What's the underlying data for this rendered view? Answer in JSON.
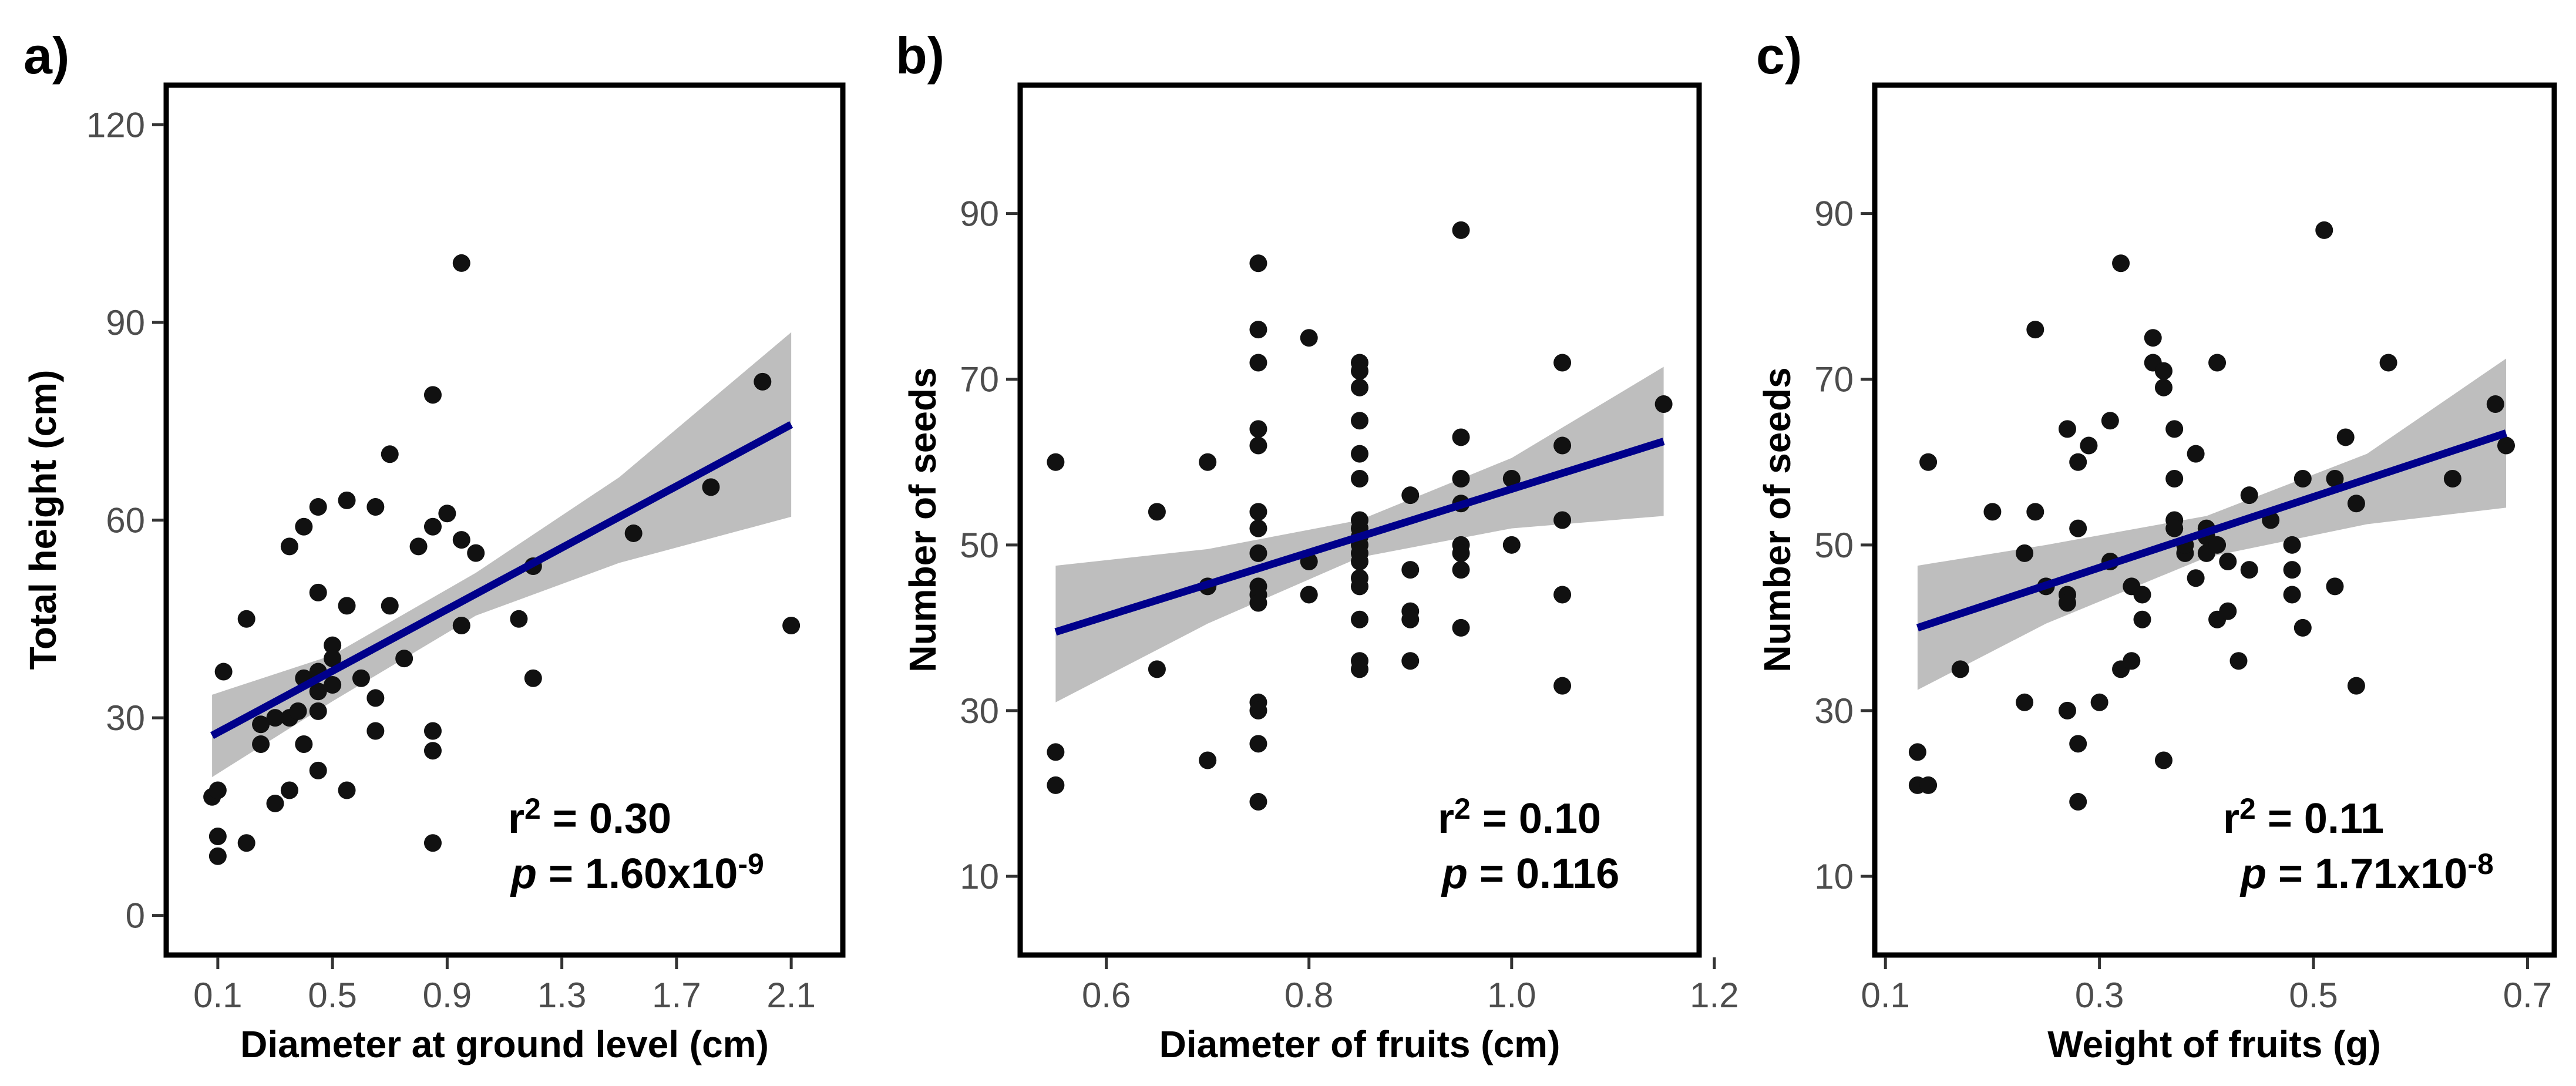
{
  "chart_data": [
    {
      "type": "scatter",
      "panel_label": "a)",
      "xlabel": "Diameter at ground level (cm)",
      "ylabel": "Total height (cm)",
      "xlim": [
        -0.08,
        2.28
      ],
      "ylim": [
        -6,
        126
      ],
      "xticks": [
        0.1,
        0.5,
        0.9,
        1.3,
        1.7,
        2.1
      ],
      "xtick_labels": [
        "0.1",
        "0.5",
        "0.9",
        "1.3",
        "1.7",
        "2.1"
      ],
      "yticks": [
        0,
        30,
        60,
        90,
        120
      ],
      "ytick_labels": [
        "0",
        "30",
        "60",
        "90",
        "120"
      ],
      "stats": {
        "r2_prefix": "r",
        "r2_exp": "2",
        "r2_value": " = 0.30",
        "p_prefix": "p",
        "p_value": "  = 1.60x10",
        "p_exp": "-9"
      },
      "fit": {
        "x": [
          0.08,
          2.1
        ],
        "y": [
          27.3,
          74.5
        ]
      },
      "ci": {
        "x": [
          0.08,
          0.5,
          1.0,
          1.5,
          2.1
        ],
        "upper": [
          33.5,
          39.5,
          52.0,
          66.5,
          88.5
        ],
        "lower": [
          21.0,
          32.5,
          45.5,
          53.5,
          60.5
        ]
      },
      "points": [
        {
          "x": 0.08,
          "y": 18
        },
        {
          "x": 0.1,
          "y": 19
        },
        {
          "x": 0.1,
          "y": 9
        },
        {
          "x": 0.1,
          "y": 12
        },
        {
          "x": 0.12,
          "y": 37
        },
        {
          "x": 0.2,
          "y": 45
        },
        {
          "x": 0.2,
          "y": 11
        },
        {
          "x": 0.25,
          "y": 29
        },
        {
          "x": 0.25,
          "y": 26
        },
        {
          "x": 0.3,
          "y": 17
        },
        {
          "x": 0.3,
          "y": 30
        },
        {
          "x": 0.35,
          "y": 30
        },
        {
          "x": 0.35,
          "y": 19
        },
        {
          "x": 0.35,
          "y": 56
        },
        {
          "x": 0.38,
          "y": 31
        },
        {
          "x": 0.4,
          "y": 59
        },
        {
          "x": 0.4,
          "y": 36
        },
        {
          "x": 0.4,
          "y": 26
        },
        {
          "x": 0.45,
          "y": 62
        },
        {
          "x": 0.45,
          "y": 49
        },
        {
          "x": 0.45,
          "y": 37
        },
        {
          "x": 0.45,
          "y": 34
        },
        {
          "x": 0.45,
          "y": 31
        },
        {
          "x": 0.45,
          "y": 22
        },
        {
          "x": 0.5,
          "y": 41
        },
        {
          "x": 0.5,
          "y": 39
        },
        {
          "x": 0.5,
          "y": 35
        },
        {
          "x": 0.55,
          "y": 63
        },
        {
          "x": 0.55,
          "y": 47
        },
        {
          "x": 0.55,
          "y": 19
        },
        {
          "x": 0.6,
          "y": 36
        },
        {
          "x": 0.65,
          "y": 62
        },
        {
          "x": 0.65,
          "y": 33
        },
        {
          "x": 0.65,
          "y": 28
        },
        {
          "x": 0.7,
          "y": 70
        },
        {
          "x": 0.7,
          "y": 47
        },
        {
          "x": 0.75,
          "y": 39
        },
        {
          "x": 0.8,
          "y": 56
        },
        {
          "x": 0.85,
          "y": 79
        },
        {
          "x": 0.85,
          "y": 59
        },
        {
          "x": 0.85,
          "y": 28
        },
        {
          "x": 0.85,
          "y": 25
        },
        {
          "x": 0.85,
          "y": 11
        },
        {
          "x": 0.9,
          "y": 61
        },
        {
          "x": 0.95,
          "y": 99
        },
        {
          "x": 0.95,
          "y": 57
        },
        {
          "x": 0.95,
          "y": 44
        },
        {
          "x": 1.0,
          "y": 55
        },
        {
          "x": 1.15,
          "y": 45
        },
        {
          "x": 1.2,
          "y": 53
        },
        {
          "x": 1.2,
          "y": 36
        },
        {
          "x": 1.55,
          "y": 58
        },
        {
          "x": 1.82,
          "y": 65
        },
        {
          "x": 2.0,
          "y": 81
        },
        {
          "x": 2.1,
          "y": 44
        }
      ]
    },
    {
      "type": "scatter",
      "panel_label": "b)",
      "xlabel": "Diameter of fruits (cm)",
      "ylabel": "Number of seeds",
      "xlim": [
        0.515,
        1.185
      ],
      "ylim": [
        0.5,
        105.5
      ],
      "xticks": [
        0.6,
        0.8,
        1.0,
        1.2
      ],
      "xtick_labels": [
        "0.6",
        "0.8",
        "1.0",
        "1.2"
      ],
      "yticks": [
        10,
        30,
        50,
        70,
        90
      ],
      "ytick_labels": [
        "10",
        "30",
        "50",
        "70",
        "90"
      ],
      "stats": {
        "r2_prefix": "r",
        "r2_exp": "2",
        "r2_value": " = 0.10",
        "p_prefix": "p",
        "p_value": "  = 0.116",
        "p_exp": ""
      },
      "fit": {
        "x": [
          0.55,
          1.15
        ],
        "y": [
          39.5,
          62.5
        ]
      },
      "ci": {
        "x": [
          0.55,
          0.7,
          0.85,
          1.0,
          1.15
        ],
        "upper": [
          47.5,
          49.5,
          53.0,
          60.5,
          71.5
        ],
        "lower": [
          31.0,
          40.5,
          48.5,
          52.0,
          53.5
        ]
      },
      "points": [
        {
          "x": 0.55,
          "y": 60
        },
        {
          "x": 0.55,
          "y": 25
        },
        {
          "x": 0.55,
          "y": 21
        },
        {
          "x": 0.65,
          "y": 54
        },
        {
          "x": 0.65,
          "y": 35
        },
        {
          "x": 0.7,
          "y": 60
        },
        {
          "x": 0.7,
          "y": 45
        },
        {
          "x": 0.7,
          "y": 24
        },
        {
          "x": 0.75,
          "y": 84
        },
        {
          "x": 0.75,
          "y": 76
        },
        {
          "x": 0.75,
          "y": 72
        },
        {
          "x": 0.75,
          "y": 64
        },
        {
          "x": 0.75,
          "y": 62
        },
        {
          "x": 0.75,
          "y": 54
        },
        {
          "x": 0.75,
          "y": 52
        },
        {
          "x": 0.75,
          "y": 49
        },
        {
          "x": 0.75,
          "y": 45
        },
        {
          "x": 0.75,
          "y": 44
        },
        {
          "x": 0.75,
          "y": 43
        },
        {
          "x": 0.75,
          "y": 31
        },
        {
          "x": 0.75,
          "y": 30
        },
        {
          "x": 0.75,
          "y": 26
        },
        {
          "x": 0.75,
          "y": 19
        },
        {
          "x": 0.8,
          "y": 75
        },
        {
          "x": 0.8,
          "y": 48
        },
        {
          "x": 0.8,
          "y": 44
        },
        {
          "x": 0.85,
          "y": 72
        },
        {
          "x": 0.85,
          "y": 71
        },
        {
          "x": 0.85,
          "y": 69
        },
        {
          "x": 0.85,
          "y": 65
        },
        {
          "x": 0.85,
          "y": 61
        },
        {
          "x": 0.85,
          "y": 58
        },
        {
          "x": 0.85,
          "y": 53
        },
        {
          "x": 0.85,
          "y": 52
        },
        {
          "x": 0.85,
          "y": 51
        },
        {
          "x": 0.85,
          "y": 50
        },
        {
          "x": 0.85,
          "y": 49
        },
        {
          "x": 0.85,
          "y": 48
        },
        {
          "x": 0.85,
          "y": 46
        },
        {
          "x": 0.85,
          "y": 45
        },
        {
          "x": 0.85,
          "y": 41
        },
        {
          "x": 0.85,
          "y": 36
        },
        {
          "x": 0.85,
          "y": 35
        },
        {
          "x": 0.9,
          "y": 56
        },
        {
          "x": 0.9,
          "y": 47
        },
        {
          "x": 0.9,
          "y": 42
        },
        {
          "x": 0.9,
          "y": 41
        },
        {
          "x": 0.9,
          "y": 36
        },
        {
          "x": 0.95,
          "y": 88
        },
        {
          "x": 0.95,
          "y": 63
        },
        {
          "x": 0.95,
          "y": 58
        },
        {
          "x": 0.95,
          "y": 55
        },
        {
          "x": 0.95,
          "y": 50
        },
        {
          "x": 0.95,
          "y": 49
        },
        {
          "x": 0.95,
          "y": 47
        },
        {
          "x": 0.95,
          "y": 40
        },
        {
          "x": 1.0,
          "y": 58
        },
        {
          "x": 1.0,
          "y": 50
        },
        {
          "x": 1.05,
          "y": 72
        },
        {
          "x": 1.05,
          "y": 62
        },
        {
          "x": 1.05,
          "y": 53
        },
        {
          "x": 1.05,
          "y": 44
        },
        {
          "x": 1.05,
          "y": 33
        },
        {
          "x": 1.15,
          "y": 67
        }
      ]
    },
    {
      "type": "scatter",
      "panel_label": "c)",
      "xlabel": "Weight of fruits (g)",
      "ylabel": "Number of seeds",
      "xlim": [
        0.09,
        0.725
      ],
      "ylim": [
        0.5,
        105.5
      ],
      "xticks": [
        0.1,
        0.3,
        0.5,
        0.7
      ],
      "xtick_labels": [
        "0.1",
        "0.3",
        "0.5",
        "0.7"
      ],
      "yticks": [
        10,
        30,
        50,
        70,
        90
      ],
      "ytick_labels": [
        "10",
        "30",
        "50",
        "70",
        "90"
      ],
      "stats": {
        "r2_prefix": "r",
        "r2_exp": "2",
        "r2_value": " = 0.11",
        "p_prefix": "p",
        "p_value": " = 1.71x10",
        "p_exp": "-8"
      },
      "fit": {
        "x": [
          0.13,
          0.68
        ],
        "y": [
          40.0,
          63.5
        ]
      },
      "ci": {
        "x": [
          0.13,
          0.25,
          0.4,
          0.55,
          0.68
        ],
        "upper": [
          47.5,
          50.0,
          53.5,
          61.0,
          72.5
        ],
        "lower": [
          32.5,
          40.5,
          48.5,
          52.5,
          54.5
        ]
      },
      "points": [
        {
          "x": 0.13,
          "y": 25
        },
        {
          "x": 0.13,
          "y": 21
        },
        {
          "x": 0.14,
          "y": 60
        },
        {
          "x": 0.14,
          "y": 21
        },
        {
          "x": 0.17,
          "y": 35
        },
        {
          "x": 0.2,
          "y": 54
        },
        {
          "x": 0.23,
          "y": 49
        },
        {
          "x": 0.23,
          "y": 31
        },
        {
          "x": 0.24,
          "y": 76
        },
        {
          "x": 0.24,
          "y": 54
        },
        {
          "x": 0.25,
          "y": 45
        },
        {
          "x": 0.27,
          "y": 64
        },
        {
          "x": 0.27,
          "y": 30
        },
        {
          "x": 0.27,
          "y": 44
        },
        {
          "x": 0.27,
          "y": 43
        },
        {
          "x": 0.28,
          "y": 60
        },
        {
          "x": 0.28,
          "y": 52
        },
        {
          "x": 0.28,
          "y": 19
        },
        {
          "x": 0.28,
          "y": 26
        },
        {
          "x": 0.29,
          "y": 62
        },
        {
          "x": 0.3,
          "y": 31
        },
        {
          "x": 0.31,
          "y": 65
        },
        {
          "x": 0.31,
          "y": 48
        },
        {
          "x": 0.32,
          "y": 84
        },
        {
          "x": 0.32,
          "y": 35
        },
        {
          "x": 0.33,
          "y": 36
        },
        {
          "x": 0.33,
          "y": 45
        },
        {
          "x": 0.34,
          "y": 44
        },
        {
          "x": 0.34,
          "y": 41
        },
        {
          "x": 0.35,
          "y": 75
        },
        {
          "x": 0.35,
          "y": 72
        },
        {
          "x": 0.36,
          "y": 69
        },
        {
          "x": 0.36,
          "y": 71
        },
        {
          "x": 0.36,
          "y": 24
        },
        {
          "x": 0.37,
          "y": 64
        },
        {
          "x": 0.37,
          "y": 58
        },
        {
          "x": 0.37,
          "y": 53
        },
        {
          "x": 0.37,
          "y": 52
        },
        {
          "x": 0.38,
          "y": 49
        },
        {
          "x": 0.38,
          "y": 50
        },
        {
          "x": 0.39,
          "y": 61
        },
        {
          "x": 0.39,
          "y": 46
        },
        {
          "x": 0.4,
          "y": 52
        },
        {
          "x": 0.4,
          "y": 51
        },
        {
          "x": 0.4,
          "y": 49
        },
        {
          "x": 0.41,
          "y": 72
        },
        {
          "x": 0.41,
          "y": 50
        },
        {
          "x": 0.41,
          "y": 41
        },
        {
          "x": 0.42,
          "y": 48
        },
        {
          "x": 0.42,
          "y": 42
        },
        {
          "x": 0.43,
          "y": 36
        },
        {
          "x": 0.44,
          "y": 56
        },
        {
          "x": 0.44,
          "y": 47
        },
        {
          "x": 0.46,
          "y": 53
        },
        {
          "x": 0.48,
          "y": 50
        },
        {
          "x": 0.48,
          "y": 44
        },
        {
          "x": 0.48,
          "y": 47
        },
        {
          "x": 0.49,
          "y": 40
        },
        {
          "x": 0.49,
          "y": 58
        },
        {
          "x": 0.51,
          "y": 88
        },
        {
          "x": 0.52,
          "y": 58
        },
        {
          "x": 0.52,
          "y": 45
        },
        {
          "x": 0.53,
          "y": 63
        },
        {
          "x": 0.54,
          "y": 55
        },
        {
          "x": 0.54,
          "y": 33
        },
        {
          "x": 0.57,
          "y": 72
        },
        {
          "x": 0.63,
          "y": 58
        },
        {
          "x": 0.67,
          "y": 67
        },
        {
          "x": 0.68,
          "y": 62
        }
      ]
    }
  ],
  "colors": {
    "points": "#111111",
    "fit_line": "#00008b",
    "ci_band": "#bebebe",
    "frame": "#000000"
  }
}
